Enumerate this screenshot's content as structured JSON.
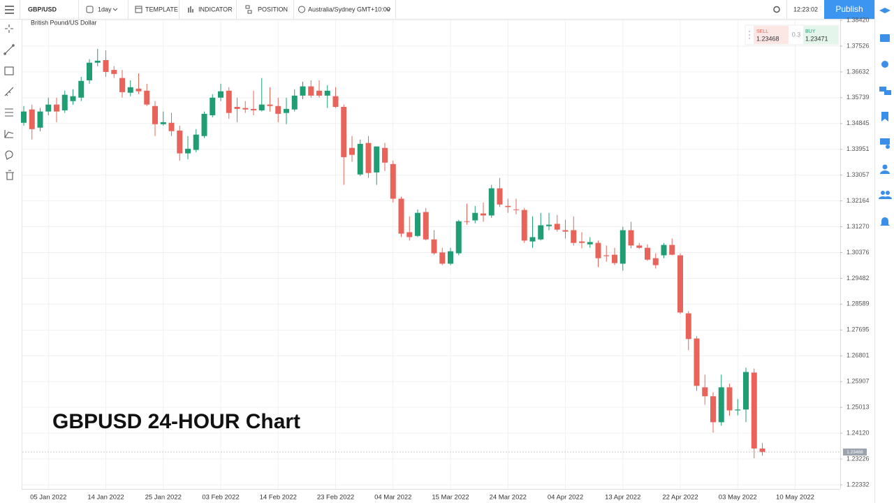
{
  "toolbar": {
    "symbol": "GBP/USD",
    "interval": "1day",
    "template": "TEMPLATE",
    "indicator": "INDICATOR",
    "position": "POSITION",
    "timezone": "Australia/Sydney GMT+10:00",
    "time": "12:23:02",
    "publish": "Publish"
  },
  "quote": {
    "sell_label": "SELL",
    "sell": 1.23468,
    "spread": 0.3,
    "buy_label": "BUY",
    "buy": 1.23471
  },
  "chart_data": {
    "type": "candlestick",
    "title": "GBPUSD 24-HOUR Chart",
    "subtitle": "British Pound/US Dollar",
    "up_color": "#1f9e74",
    "down_color": "#e8645a",
    "grid": true,
    "ylim": [
      1.22187,
      1.38444
    ],
    "yticks": [
      {
        "value": 1.3842,
        "label": "1.38420"
      },
      1.37526,
      1.36632,
      1.35739,
      1.34845,
      1.33951,
      1.33057,
      1.32164,
      {
        "value": 1.3127,
        "label": "1.31270"
      },
      1.30376,
      1.29482,
      1.28589,
      1.27695,
      1.26801,
      1.25907,
      1.25013,
      {
        "value": 1.2412,
        "label": "1.24120"
      },
      1.23226,
      1.22332
    ],
    "last_price": 1.23468,
    "categories": [
      null,
      null,
      null,
      "05 Jan 2022",
      null,
      null,
      null,
      null,
      null,
      null,
      "14 Jan 2022",
      null,
      null,
      null,
      null,
      null,
      null,
      "25 Jan 2022",
      null,
      null,
      null,
      null,
      null,
      null,
      "03 Feb 2022",
      null,
      null,
      null,
      null,
      null,
      null,
      "14 Feb 2022",
      null,
      null,
      null,
      null,
      null,
      null,
      "23 Feb 2022",
      null,
      null,
      null,
      null,
      null,
      null,
      "04 Mar 2022",
      null,
      null,
      null,
      null,
      null,
      null,
      "15 Mar 2022",
      null,
      null,
      null,
      null,
      null,
      null,
      "24 Mar 2022",
      null,
      null,
      null,
      null,
      null,
      null,
      "04 Apr 2022",
      null,
      null,
      null,
      null,
      null,
      null,
      "13 Apr 2022",
      null,
      null,
      null,
      null,
      null,
      null,
      "22 Apr 2022",
      null,
      null,
      null,
      null,
      null,
      null,
      "03 May 2022",
      null,
      null,
      null,
      null,
      null,
      null,
      "10 May 2022"
    ],
    "open": [
      1.3487,
      1.3533,
      1.347,
      1.3526,
      1.355,
      1.353,
      1.3562,
      1.3574,
      1.3634,
      1.3695,
      1.3704,
      1.367,
      1.3642,
      1.3591,
      1.3605,
      1.3598,
      1.3545,
      1.3482,
      1.3487,
      1.346,
      1.3381,
      1.3393,
      1.3441,
      1.3513,
      1.3574,
      1.3598,
      1.3542,
      1.3538,
      1.3535,
      1.353,
      1.355,
      1.3545,
      1.3521,
      1.3533,
      1.3581,
      1.3613,
      1.3598,
      1.3581,
      1.3579,
      1.3542,
      1.34,
      1.3308,
      1.3417,
      1.3315,
      1.34,
      1.3344,
      1.3224,
      1.3108,
      1.3095,
      1.3178,
      1.3083,
      1.3038,
      1.2999,
      1.3035,
      1.3146,
      1.3149,
      1.3173,
      1.3166,
      1.326,
      1.3199,
      1.3187,
      1.3185,
      1.3076,
      1.3083,
      1.3129,
      1.3137,
      1.3115,
      1.3115,
      1.3076,
      1.3066,
      1.3071,
      1.3028,
      1.303,
      1.2999,
      1.3115,
      1.3062,
      1.3054,
      1.3018,
      1.3028,
      1.3064,
      1.3028,
      1.2827,
      1.274,
      1.2571,
      1.254,
      1.245,
      1.2571,
      1.2491,
      1.2494,
      1.2622,
      1.2359,
      null,
      null,
      null,
      null
    ],
    "high": [
      1.3545,
      1.355,
      1.3538,
      1.3574,
      1.3574,
      1.3598,
      1.3603,
      1.3646,
      1.3707,
      1.3743,
      1.3738,
      1.3683,
      1.367,
      1.3634,
      1.3658,
      1.3622,
      1.3562,
      1.3526,
      1.3521,
      1.3477,
      1.3441,
      1.3465,
      1.3526,
      1.3586,
      1.3622,
      1.361,
      1.3574,
      1.3562,
      1.3598,
      1.3642,
      1.361,
      1.3574,
      1.3574,
      1.3603,
      1.3629,
      1.3634,
      1.3634,
      1.3617,
      1.361,
      1.355,
      1.3441,
      1.3429,
      1.3441,
      1.3405,
      1.3417,
      1.3356,
      1.3231,
      1.3163,
      1.3187,
      1.3192,
      1.3115,
      1.3054,
      1.3054,
      1.3151,
      1.3207,
      1.3199,
      1.3211,
      1.3272,
      1.3296,
      1.3224,
      1.3224,
      1.3192,
      1.3163,
      1.3175,
      1.3175,
      1.3168,
      1.3151,
      1.3163,
      1.3108,
      1.3091,
      1.3079,
      1.3062,
      1.3054,
      1.3127,
      1.3144,
      1.3071,
      1.3066,
      1.3035,
      1.3071,
      1.3086,
      1.3035,
      1.2835,
      1.2748,
      1.2615,
      1.2554,
      1.2615,
      1.2583,
      1.253,
      1.2639,
      1.2636,
      1.2378,
      null,
      null,
      null,
      null
    ],
    "low": [
      1.3477,
      1.3429,
      1.3458,
      1.3513,
      1.3489,
      1.3521,
      1.355,
      1.3562,
      1.3622,
      1.3683,
      1.3646,
      1.3642,
      1.3574,
      1.3579,
      1.3586,
      1.3545,
      1.3441,
      1.3477,
      1.3441,
      1.3356,
      1.3361,
      1.3385,
      1.3434,
      1.3506,
      1.3562,
      1.3501,
      1.3489,
      1.3521,
      1.3513,
      1.3526,
      1.3526,
      1.3489,
      1.3482,
      1.3526,
      1.3569,
      1.3574,
      1.3574,
      1.3538,
      1.3538,
      1.3272,
      1.3352,
      1.3303,
      1.3296,
      1.3272,
      1.332,
      1.3211,
      1.3091,
      1.3079,
      1.3091,
      1.3079,
      1.303,
      1.2994,
      1.2994,
      1.3028,
      1.3134,
      1.3139,
      1.3144,
      1.3158,
      1.3195,
      1.3175,
      1.317,
      1.3071,
      1.3054,
      1.3079,
      1.3115,
      1.311,
      1.3086,
      1.3062,
      1.3052,
      1.3054,
      1.2987,
      1.3006,
      1.2994,
      1.2975,
      1.3052,
      1.305,
      1.3009,
      1.2982,
      1.3018,
      1.3028,
      1.2825,
      1.2699,
      1.2559,
      1.2511,
      1.2414,
      1.2438,
      1.2472,
      1.2474,
      1.245,
      1.2325,
      1.2334,
      null,
      null,
      null,
      null
    ],
    "close": [
      1.3526,
      1.3465,
      1.3526,
      1.355,
      1.3526,
      1.3584,
      1.3579,
      1.3632,
      1.3695,
      1.3702,
      1.3663,
      1.3656,
      1.3593,
      1.361,
      1.3596,
      1.355,
      1.3482,
      1.3489,
      1.3458,
      1.3381,
      1.3397,
      1.3446,
      1.3518,
      1.3574,
      1.3596,
      1.3521,
      1.3535,
      1.3533,
      1.353,
      1.355,
      1.3545,
      1.3518,
      1.3535,
      1.3581,
      1.3613,
      1.3581,
      1.3581,
      1.3598,
      1.3542,
      1.3368,
      1.3376,
      1.3414,
      1.3313,
      1.3405,
      1.3349,
      1.3224,
      1.3103,
      1.3091,
      1.3175,
      1.3083,
      1.3035,
      1.2999,
      1.3042,
      1.3146,
      1.3144,
      1.3175,
      1.3166,
      1.326,
      1.3204,
      1.3195,
      1.3185,
      1.3079,
      1.3091,
      1.3132,
      1.3134,
      1.3117,
      1.311,
      1.3071,
      1.3071,
      1.3074,
      1.3018,
      1.3025,
      1.3001,
      1.3115,
      1.3062,
      1.3054,
      1.3013,
      1.2994,
      1.3064,
      1.303,
      1.283,
      1.2738,
      1.2576,
      1.254,
      1.245,
      1.2571,
      1.2491,
      1.2494,
      1.2624,
      1.2359,
      1.2346,
      null,
      null,
      null,
      null
    ]
  }
}
